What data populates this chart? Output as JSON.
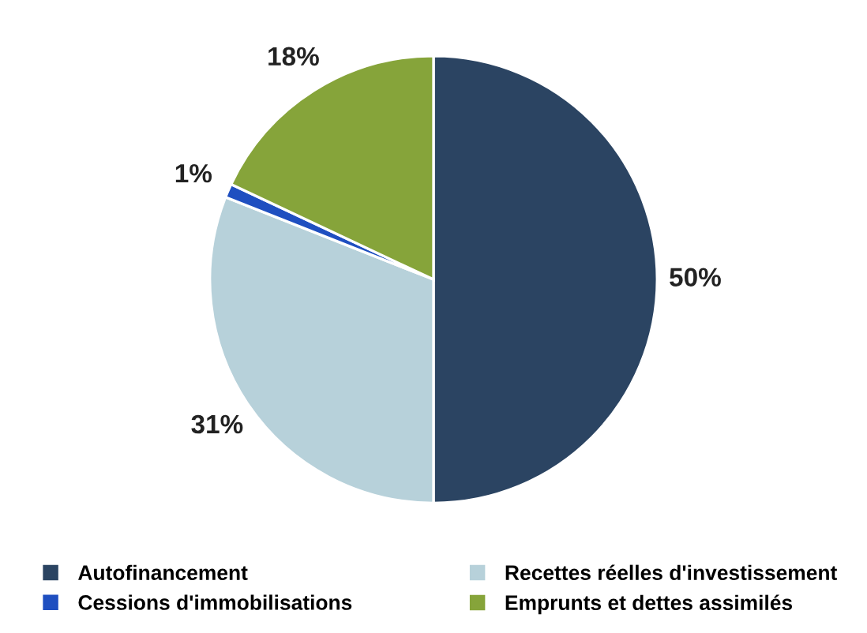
{
  "chart_data": {
    "type": "pie",
    "categories": [
      "Autofinancement",
      "Recettes réelles d'investissement",
      "Cessions d'immobilisations",
      "Emprunts et dettes assimilés"
    ],
    "values": [
      50,
      31,
      1,
      18
    ],
    "colors": [
      "#2b4462",
      "#b7d1da",
      "#1f4fc0",
      "#86a43a"
    ],
    "value_labels": [
      "50%",
      "31%",
      "1%",
      "18%"
    ],
    "legend": "bottom"
  }
}
